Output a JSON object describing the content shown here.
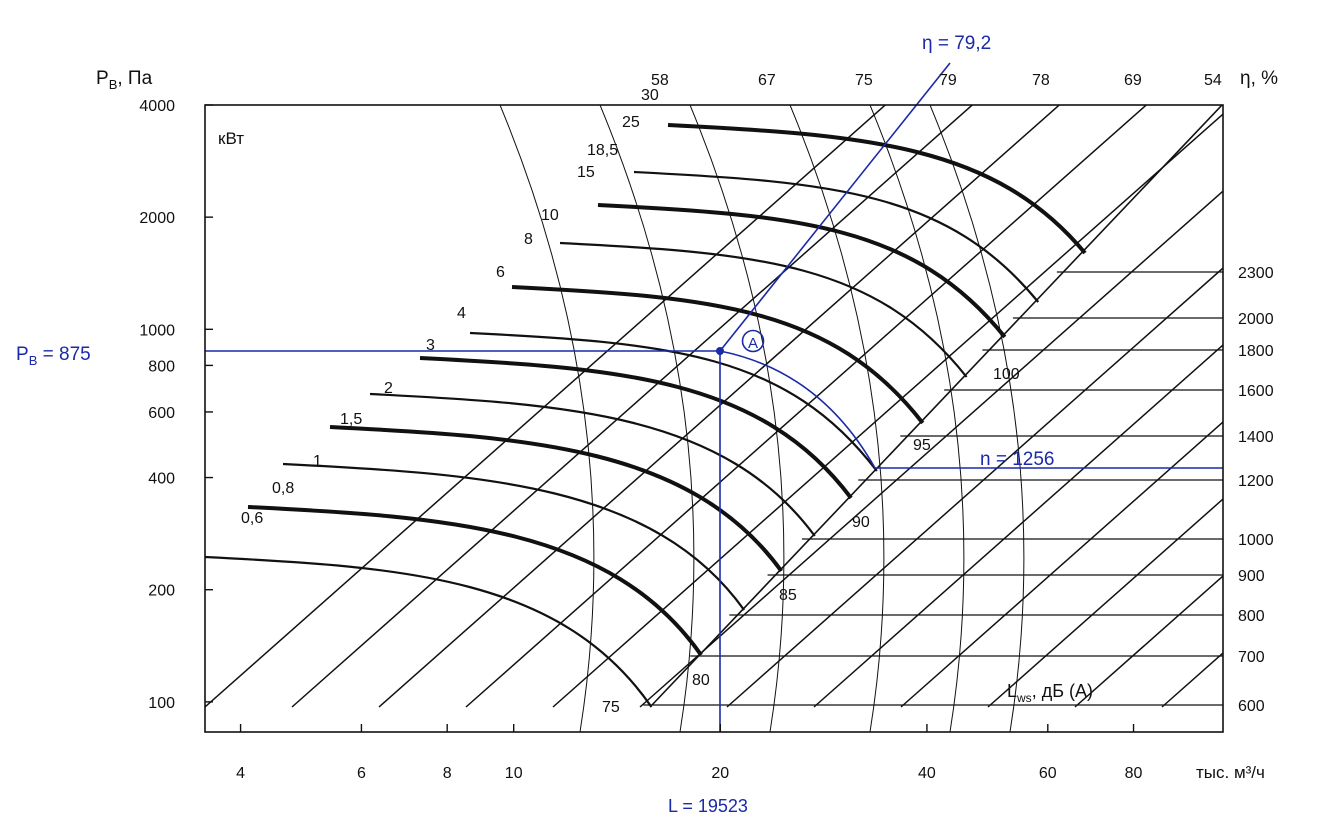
{
  "chart_data": {
    "type": "line",
    "title": "",
    "x_scale": "log",
    "y_scale": "log",
    "xlim": [
      3.55,
      108
    ],
    "ylim": [
      83,
      4000
    ],
    "x_ticks": [
      4,
      6,
      8,
      10,
      20,
      40,
      60,
      80
    ],
    "y_ticks": [
      100,
      200,
      400,
      600,
      800,
      1000,
      2000,
      4000
    ],
    "xlabel": "тыс. м³/ч",
    "ylabel_main": "P",
    "ylabel_sub": "В",
    "ylabel_unit": ", Па",
    "power_label": "кВт",
    "power_values": [
      "0,6",
      "0,8",
      "1",
      "1,5",
      "2",
      "3",
      "4",
      "6",
      "8",
      "10",
      "15",
      "18,5",
      "25",
      "30"
    ],
    "eff_label": "η, %",
    "eff_values": [
      "58",
      "67",
      "75",
      "79",
      "78",
      "69",
      "54"
    ],
    "speed_values": [
      "600",
      "700",
      "800",
      "900",
      "1000",
      "1200",
      "1400",
      "1600",
      "1800",
      "2000",
      "2300"
    ],
    "noise_values": [
      "75",
      "80",
      "85",
      "90",
      "95",
      "100"
    ],
    "noise_label_main": "L",
    "noise_label_sub": "ws",
    "noise_label_unit": ", дБ (А)",
    "operating_point": {
      "label": "A",
      "flow_label": "L = 19523",
      "pressure_label_main": "P",
      "pressure_label_sub": "B",
      "pressure_label_value": " = 875",
      "speed_label": "n = 1256",
      "efficiency_label": "η = 79,2",
      "flow": 19.523,
      "pressure": 875,
      "speed": 1256,
      "efficiency": 79.2
    },
    "colors": {
      "curves": "#111111",
      "operating_point": "#1a2aa8"
    }
  }
}
